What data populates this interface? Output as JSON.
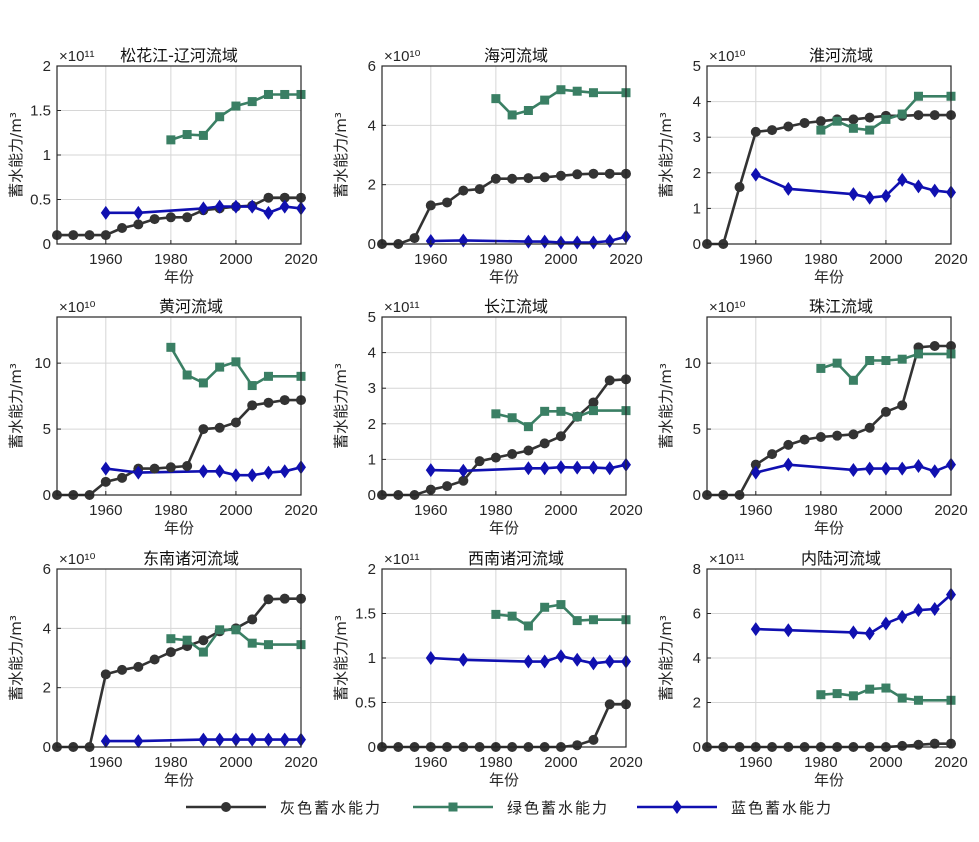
{
  "legend": {
    "items": [
      {
        "label": "灰色蓄水能力",
        "color": "#333333",
        "marker": "circle"
      },
      {
        "label": "绿色蓄水能力",
        "color": "#3a7f64",
        "marker": "square"
      },
      {
        "label": "蓝色蓄水能力",
        "color": "#1010b0",
        "marker": "diamond"
      }
    ]
  },
  "chart_data": [
    {
      "type": "line",
      "title": "松花江-辽河流域",
      "xlabel": "年份",
      "ylabel": "蓄水能力/m³",
      "exponent": "×10¹¹",
      "xlim": [
        1945,
        2020
      ],
      "ylim": [
        0,
        2
      ],
      "xticks": [
        1960,
        1980,
        2000,
        2020
      ],
      "yticks": [
        0,
        0.5,
        1,
        1.5,
        2
      ],
      "ytick_labels": [
        "0",
        "0.5",
        "1",
        "1.5",
        "2"
      ],
      "series": [
        {
          "name": "灰色蓄水能力",
          "x": [
            1945,
            1950,
            1955,
            1960,
            1965,
            1970,
            1975,
            1980,
            1985,
            1990,
            1995,
            2000,
            2005,
            2010,
            2015,
            2020
          ],
          "y": [
            0.1,
            0.1,
            0.1,
            0.1,
            0.18,
            0.22,
            0.28,
            0.3,
            0.3,
            0.38,
            0.4,
            0.42,
            0.43,
            0.52,
            0.52,
            0.52
          ]
        },
        {
          "name": "绿色蓄水能力",
          "x": [
            1980,
            1985,
            1990,
            1995,
            2000,
            2005,
            2010,
            2015,
            2020
          ],
          "y": [
            1.17,
            1.23,
            1.22,
            1.43,
            1.55,
            1.6,
            1.68,
            1.68,
            1.68
          ]
        },
        {
          "name": "蓝色蓄水能力",
          "x": [
            1960,
            1970,
            1990,
            1995,
            2000,
            2005,
            2010,
            2015,
            2020
          ],
          "y": [
            0.35,
            0.35,
            0.4,
            0.42,
            0.42,
            0.42,
            0.35,
            0.42,
            0.4
          ]
        }
      ]
    },
    {
      "type": "line",
      "title": "海河流域",
      "xlabel": "年份",
      "ylabel": "蓄水能力/m³",
      "exponent": "×10¹⁰",
      "xlim": [
        1945,
        2020
      ],
      "ylim": [
        0,
        6
      ],
      "xticks": [
        1960,
        1980,
        2000,
        2020
      ],
      "yticks": [
        0,
        2,
        4,
        6
      ],
      "ytick_labels": [
        "0",
        "2",
        "4",
        "6"
      ],
      "series": [
        {
          "name": "灰色蓄水能力",
          "x": [
            1945,
            1950,
            1955,
            1960,
            1965,
            1970,
            1975,
            1980,
            1985,
            1990,
            1995,
            2000,
            2005,
            2010,
            2015,
            2020
          ],
          "y": [
            0,
            0,
            0.2,
            1.3,
            1.4,
            1.8,
            1.85,
            2.2,
            2.2,
            2.22,
            2.25,
            2.3,
            2.35,
            2.37,
            2.37,
            2.37
          ]
        },
        {
          "name": "绿色蓄水能力",
          "x": [
            1980,
            1985,
            1990,
            1995,
            2000,
            2005,
            2010,
            2020
          ],
          "y": [
            4.9,
            4.35,
            4.5,
            4.85,
            5.2,
            5.15,
            5.1,
            5.1
          ]
        },
        {
          "name": "蓝色蓄水能力",
          "x": [
            1960,
            1970,
            1990,
            1995,
            2000,
            2005,
            2010,
            2015,
            2020
          ],
          "y": [
            0.1,
            0.12,
            0.08,
            0.08,
            0.05,
            0.05,
            0.05,
            0.1,
            0.25
          ]
        }
      ]
    },
    {
      "type": "line",
      "title": "淮河流域",
      "xlabel": "年份",
      "ylabel": "蓄水能力/m³",
      "exponent": "×10¹⁰",
      "xlim": [
        1945,
        2020
      ],
      "ylim": [
        0,
        5
      ],
      "xticks": [
        1960,
        1980,
        2000,
        2020
      ],
      "yticks": [
        0,
        1,
        2,
        3,
        4,
        5
      ],
      "ytick_labels": [
        "0",
        "1",
        "2",
        "3",
        "4",
        "5"
      ],
      "series": [
        {
          "name": "灰色蓄水能力",
          "x": [
            1945,
            1950,
            1955,
            1960,
            1965,
            1970,
            1975,
            1980,
            1985,
            1990,
            1995,
            2000,
            2005,
            2010,
            2015,
            2020
          ],
          "y": [
            0,
            0,
            1.6,
            3.15,
            3.2,
            3.3,
            3.4,
            3.45,
            3.5,
            3.5,
            3.55,
            3.6,
            3.6,
            3.62,
            3.62,
            3.62
          ]
        },
        {
          "name": "绿色蓄水能力",
          "x": [
            1980,
            1985,
            1990,
            1995,
            2000,
            2005,
            2010,
            2020
          ],
          "y": [
            3.2,
            3.45,
            3.25,
            3.2,
            3.5,
            3.65,
            4.15,
            4.15
          ]
        },
        {
          "name": "蓝色蓄水能力",
          "x": [
            1960,
            1970,
            1990,
            1995,
            2000,
            2005,
            2010,
            2015,
            2020
          ],
          "y": [
            1.95,
            1.55,
            1.4,
            1.3,
            1.35,
            1.8,
            1.62,
            1.5,
            1.45
          ]
        }
      ]
    },
    {
      "type": "line",
      "title": "黄河流域",
      "xlabel": "年份",
      "ylabel": "蓄水能力/m³",
      "exponent": "×10¹⁰",
      "xlim": [
        1945,
        2020
      ],
      "ylim": [
        0,
        13.5
      ],
      "xticks": [
        1960,
        1980,
        2000,
        2020
      ],
      "yticks": [
        0,
        5,
        10
      ],
      "ytick_labels": [
        "0",
        "5",
        "10"
      ],
      "series": [
        {
          "name": "灰色蓄水能力",
          "x": [
            1945,
            1950,
            1955,
            1960,
            1965,
            1970,
            1975,
            1980,
            1985,
            1990,
            1995,
            2000,
            2005,
            2010,
            2015,
            2020
          ],
          "y": [
            0,
            0,
            0,
            1.0,
            1.3,
            2.0,
            2.0,
            2.1,
            2.2,
            5.0,
            5.1,
            5.5,
            6.8,
            7.0,
            7.2,
            7.2
          ]
        },
        {
          "name": "绿色蓄水能力",
          "x": [
            1980,
            1985,
            1990,
            1995,
            2000,
            2005,
            2010,
            2020
          ],
          "y": [
            11.2,
            9.1,
            8.5,
            9.7,
            10.1,
            8.3,
            9.0,
            9.0
          ]
        },
        {
          "name": "蓝色蓄水能力",
          "x": [
            1960,
            1970,
            1990,
            1995,
            2000,
            2005,
            2010,
            2015,
            2020
          ],
          "y": [
            2.0,
            1.7,
            1.8,
            1.8,
            1.5,
            1.5,
            1.7,
            1.8,
            2.1
          ]
        }
      ]
    },
    {
      "type": "line",
      "title": "长江流域",
      "xlabel": "年份",
      "ylabel": "蓄水能力/m³",
      "exponent": "×10¹¹",
      "xlim": [
        1945,
        2020
      ],
      "ylim": [
        0,
        5
      ],
      "xticks": [
        1960,
        1980,
        2000,
        2020
      ],
      "yticks": [
        0,
        1,
        2,
        3,
        4,
        5
      ],
      "ytick_labels": [
        "0",
        "1",
        "2",
        "3",
        "4",
        "5"
      ],
      "series": [
        {
          "name": "灰色蓄水能力",
          "x": [
            1945,
            1950,
            1955,
            1960,
            1965,
            1970,
            1975,
            1980,
            1985,
            1990,
            1995,
            2000,
            2005,
            2010,
            2015,
            2020
          ],
          "y": [
            0,
            0,
            0,
            0.15,
            0.25,
            0.4,
            0.95,
            1.05,
            1.15,
            1.25,
            1.45,
            1.65,
            2.2,
            2.6,
            3.22,
            3.25
          ]
        },
        {
          "name": "绿色蓄水能力",
          "x": [
            1980,
            1985,
            1990,
            1995,
            2000,
            2005,
            2010,
            2020
          ],
          "y": [
            2.28,
            2.17,
            1.92,
            2.35,
            2.35,
            2.2,
            2.37,
            2.37
          ]
        },
        {
          "name": "蓝色蓄水能力",
          "x": [
            1960,
            1970,
            1990,
            1995,
            2000,
            2005,
            2010,
            2015,
            2020
          ],
          "y": [
            0.7,
            0.68,
            0.75,
            0.75,
            0.78,
            0.77,
            0.77,
            0.75,
            0.85
          ]
        }
      ]
    },
    {
      "type": "line",
      "title": "珠江流域",
      "xlabel": "年份",
      "ylabel": "蓄水能力/m³",
      "exponent": "×10¹⁰",
      "xlim": [
        1945,
        2020
      ],
      "ylim": [
        0,
        13.5
      ],
      "xticks": [
        1960,
        1980,
        2000,
        2020
      ],
      "yticks": [
        0,
        5,
        10
      ],
      "ytick_labels": [
        "0",
        "5",
        "10"
      ],
      "series": [
        {
          "name": "灰色蓄水能力",
          "x": [
            1945,
            1950,
            1955,
            1960,
            1965,
            1970,
            1975,
            1980,
            1985,
            1990,
            1995,
            2000,
            2005,
            2010,
            2015,
            2020
          ],
          "y": [
            0,
            0,
            0,
            2.3,
            3.1,
            3.8,
            4.2,
            4.4,
            4.5,
            4.6,
            5.1,
            6.3,
            6.8,
            11.2,
            11.3,
            11.3
          ]
        },
        {
          "name": "绿色蓄水能力",
          "x": [
            1980,
            1985,
            1990,
            1995,
            2000,
            2005,
            2010,
            2020
          ],
          "y": [
            9.6,
            10.0,
            8.7,
            10.2,
            10.2,
            10.3,
            10.7,
            10.7
          ]
        },
        {
          "name": "蓝色蓄水能力",
          "x": [
            1960,
            1970,
            1990,
            1995,
            2000,
            2005,
            2010,
            2015,
            2020
          ],
          "y": [
            1.7,
            2.3,
            1.9,
            2.0,
            2.0,
            2.0,
            2.2,
            1.8,
            2.3
          ]
        }
      ]
    },
    {
      "type": "line",
      "title": "东南诸河流域",
      "xlabel": "年份",
      "ylabel": "蓄水能力/m³",
      "exponent": "×10¹⁰",
      "xlim": [
        1945,
        2020
      ],
      "ylim": [
        0,
        6
      ],
      "xticks": [
        1960,
        1980,
        2000,
        2020
      ],
      "yticks": [
        0,
        2,
        4,
        6
      ],
      "ytick_labels": [
        "0",
        "2",
        "4",
        "6"
      ],
      "series": [
        {
          "name": "灰色蓄水能力",
          "x": [
            1945,
            1950,
            1955,
            1960,
            1965,
            1970,
            1975,
            1980,
            1985,
            1990,
            1995,
            2000,
            2005,
            2010,
            2015,
            2020
          ],
          "y": [
            0,
            0,
            0,
            2.45,
            2.6,
            2.7,
            2.95,
            3.2,
            3.4,
            3.6,
            3.9,
            4.0,
            4.3,
            4.98,
            5.0,
            5.0
          ]
        },
        {
          "name": "绿色蓄水能力",
          "x": [
            1980,
            1985,
            1990,
            1995,
            2000,
            2005,
            2010,
            2020
          ],
          "y": [
            3.65,
            3.6,
            3.2,
            3.95,
            3.95,
            3.5,
            3.45,
            3.45
          ]
        },
        {
          "name": "蓝色蓄水能力",
          "x": [
            1960,
            1970,
            1990,
            1995,
            2000,
            2005,
            2010,
            2015,
            2020
          ],
          "y": [
            0.2,
            0.2,
            0.25,
            0.25,
            0.25,
            0.25,
            0.25,
            0.25,
            0.25
          ]
        }
      ]
    },
    {
      "type": "line",
      "title": "西南诸河流域",
      "xlabel": "年份",
      "ylabel": "蓄水能力/m³",
      "exponent": "×10¹¹",
      "xlim": [
        1945,
        2020
      ],
      "ylim": [
        0,
        2
      ],
      "xticks": [
        1960,
        1980,
        2000,
        2020
      ],
      "yticks": [
        0,
        0.5,
        1,
        1.5,
        2
      ],
      "ytick_labels": [
        "0",
        "0.5",
        "1",
        "1.5",
        "2"
      ],
      "series": [
        {
          "name": "灰色蓄水能力",
          "x": [
            1945,
            1950,
            1955,
            1960,
            1965,
            1970,
            1975,
            1980,
            1985,
            1990,
            1995,
            2000,
            2005,
            2010,
            2015,
            2020
          ],
          "y": [
            0,
            0,
            0,
            0,
            0,
            0,
            0,
            0,
            0,
            0,
            0,
            0,
            0.02,
            0.08,
            0.48,
            0.48
          ]
        },
        {
          "name": "绿色蓄水能力",
          "x": [
            1980,
            1985,
            1990,
            1995,
            2000,
            2005,
            2010,
            2020
          ],
          "y": [
            1.49,
            1.47,
            1.36,
            1.57,
            1.6,
            1.42,
            1.43,
            1.43
          ]
        },
        {
          "name": "蓝色蓄水能力",
          "x": [
            1960,
            1970,
            1990,
            1995,
            2000,
            2005,
            2010,
            2015,
            2020
          ],
          "y": [
            1.0,
            0.98,
            0.96,
            0.96,
            1.02,
            0.98,
            0.94,
            0.96,
            0.96
          ]
        }
      ]
    },
    {
      "type": "line",
      "title": "内陆河流域",
      "xlabel": "年份",
      "ylabel": "蓄水能力/m³",
      "exponent": "×10¹¹",
      "xlim": [
        1945,
        2020
      ],
      "ylim": [
        0,
        8
      ],
      "xticks": [
        1960,
        1980,
        2000,
        2020
      ],
      "yticks": [
        0,
        2,
        4,
        6,
        8
      ],
      "ytick_labels": [
        "0",
        "2",
        "4",
        "6",
        "8"
      ],
      "series": [
        {
          "name": "灰色蓄水能力",
          "x": [
            1945,
            1950,
            1955,
            1960,
            1965,
            1970,
            1975,
            1980,
            1985,
            1990,
            1995,
            2000,
            2005,
            2010,
            2015,
            2020
          ],
          "y": [
            0,
            0,
            0,
            0,
            0,
            0,
            0,
            0,
            0,
            0,
            0,
            0,
            0.05,
            0.1,
            0.15,
            0.15
          ]
        },
        {
          "name": "绿色蓄水能力",
          "x": [
            1980,
            1985,
            1990,
            1995,
            2000,
            2005,
            2010,
            2020
          ],
          "y": [
            2.35,
            2.4,
            2.3,
            2.6,
            2.65,
            2.2,
            2.1,
            2.1
          ]
        },
        {
          "name": "蓝色蓄水能力",
          "x": [
            1960,
            1970,
            1990,
            1995,
            2000,
            2005,
            2010,
            2015,
            2020
          ],
          "y": [
            5.3,
            5.25,
            5.15,
            5.1,
            5.55,
            5.85,
            6.15,
            6.2,
            6.85
          ]
        }
      ]
    }
  ]
}
